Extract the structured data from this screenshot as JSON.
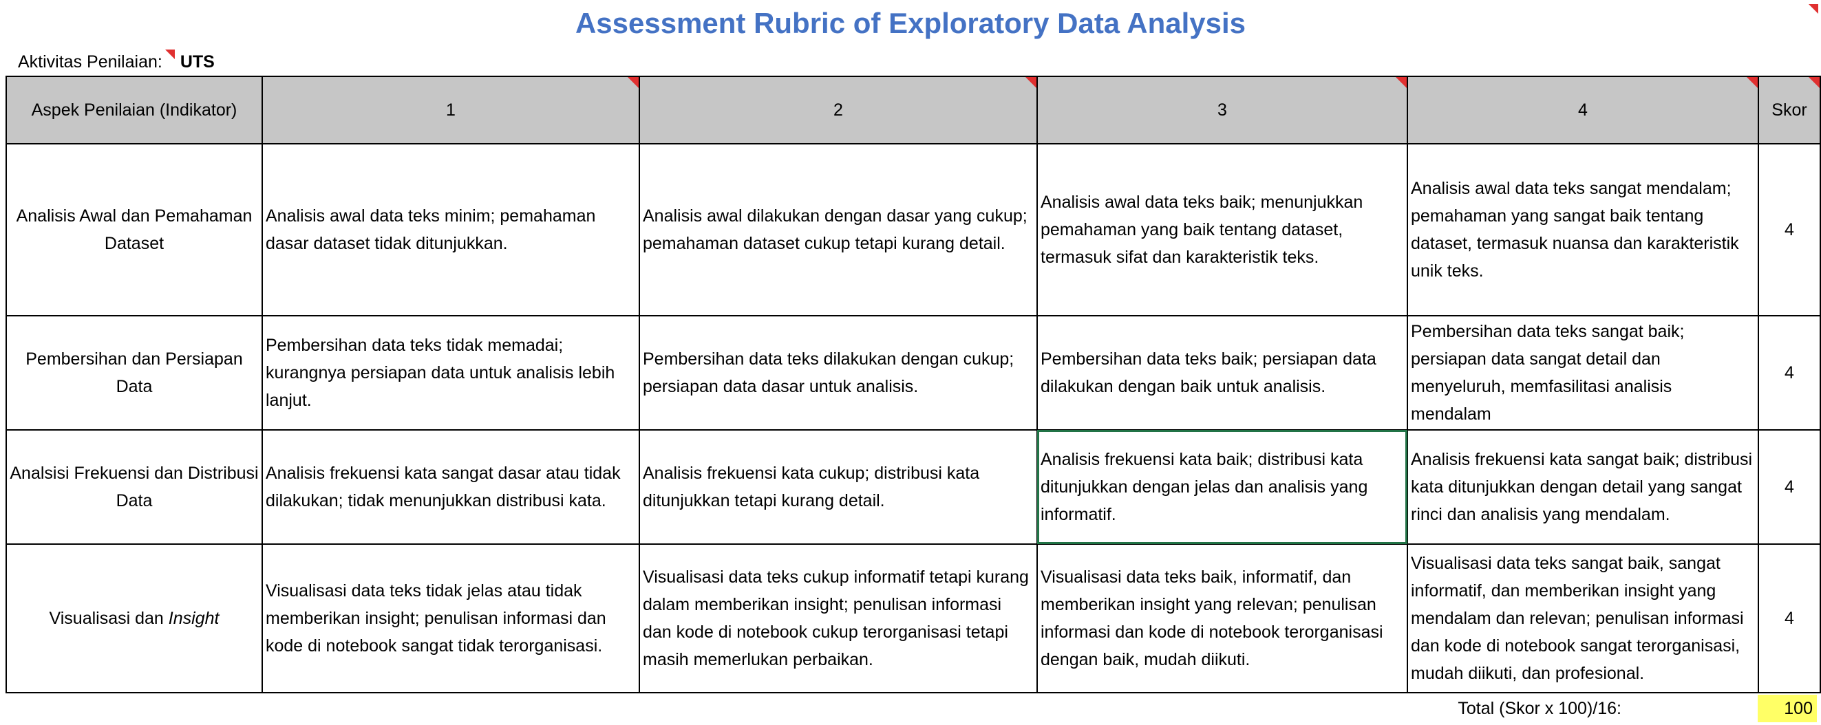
{
  "title": "Assessment Rubric of Exploratory Data Analysis",
  "activity": {
    "label": "Aktivitas Penilaian:",
    "value": "UTS"
  },
  "table": {
    "headers": [
      "Aspek Penilaian (Indikator)",
      "1",
      "2",
      "3",
      "4",
      "Skor"
    ],
    "rows": [
      {
        "aspect": "Analisis Awal dan Pemahaman Dataset",
        "levels": [
          "Analisis awal data teks minim; pemahaman dasar dataset tidak ditunjukkan.",
          "Analisis awal dilakukan dengan dasar yang cukup; pemahaman dataset cukup tetapi kurang detail.",
          "Analisis awal data teks baik; menunjukkan pemahaman yang baik tentang dataset, termasuk sifat dan karakteristik teks.",
          "Analisis awal data teks sangat mendalam; pemahaman yang sangat baik tentang dataset, termasuk nuansa dan karakteristik unik teks."
        ],
        "score": "4"
      },
      {
        "aspect": "Pembersihan dan Persiapan Data",
        "levels": [
          "Pembersihan data teks tidak memadai; kurangnya persiapan data untuk analisis lebih lanjut.",
          "Pembersihan data teks dilakukan dengan cukup; persiapan data dasar untuk analisis.",
          "Pembersihan data teks baik; persiapan data dilakukan dengan baik untuk analisis.",
          "Pembersihan data teks sangat baik; persiapan data sangat detail dan menyeluruh, memfasilitasi analisis mendalam"
        ],
        "score": "4"
      },
      {
        "aspect": "Analsisi Frekuensi dan Distribusi Data",
        "levels": [
          "Analisis frekuensi kata sangat dasar atau tidak dilakukan; tidak menunjukkan distribusi kata.",
          "Analisis frekuensi kata cukup; distribusi kata ditunjukkan tetapi kurang detail.",
          "Analisis frekuensi kata baik; distribusi kata ditunjukkan dengan jelas dan analisis yang informatif.",
          "Analisis frekuensi kata sangat baik; distribusi kata ditunjukkan dengan detail yang sangat rinci dan analisis yang mendalam."
        ],
        "score": "4"
      },
      {
        "aspect_prefix": "Visualisasi dan ",
        "aspect_italic": "Insight",
        "levels": [
          "Visualisasi data teks tidak jelas atau tidak memberikan insight; penulisan informasi dan kode di notebook sangat tidak terorganisasi.",
          "Visualisasi data teks cukup informatif tetapi kurang dalam memberikan insight; penulisan informasi dan kode di notebook cukup terorganisasi tetapi masih memerlukan perbaikan.",
          "Visualisasi data teks baik, informatif, dan memberikan insight yang relevan; penulisan informasi dan kode di notebook terorganisasi dengan baik, mudah diikuti.",
          "Visualisasi data teks sangat baik, sangat informatif, dan memberikan insight yang mendalam dan relevan; penulisan informasi dan kode di notebook sangat terorganisasi, mudah diikuti, dan profesional."
        ],
        "score": "4"
      }
    ]
  },
  "total": {
    "label": "Total (Skor x 100)/16:",
    "value": "100"
  },
  "colors": {
    "title": "#4472c4",
    "header_bg": "#c6c6c6",
    "comment_marker": "#e03030",
    "selection": "#217346",
    "total_highlight": "#ffff66"
  }
}
